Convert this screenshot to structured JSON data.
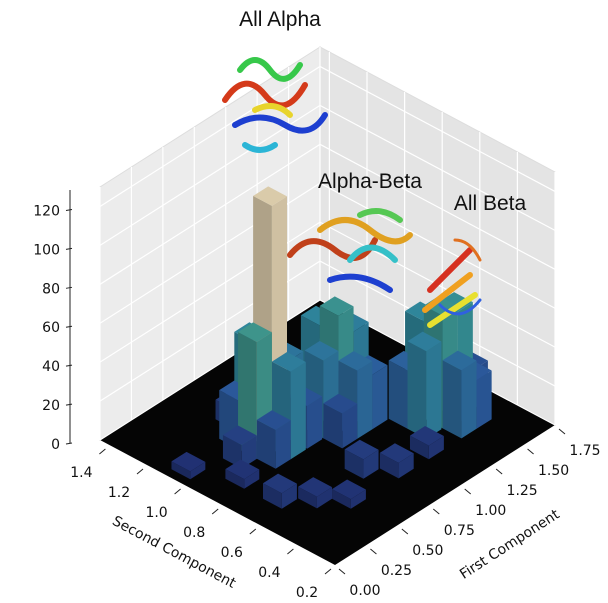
{
  "chart_data": {
    "type": "bar3d",
    "annotations": [
      "All Alpha",
      "Alpha-Beta",
      "All Beta"
    ],
    "xlabel": "First Component",
    "ylabel": "Second Component",
    "xlim": [
      0,
      1.75
    ],
    "ylim": [
      0.2,
      1.45
    ],
    "zlim": [
      0,
      130
    ],
    "xticks": [
      {
        "value": 0,
        "label": "0.00"
      },
      {
        "value": 0.25,
        "label": "0.25"
      },
      {
        "value": 0.5,
        "label": "0.50"
      },
      {
        "value": 0.75,
        "label": "0.75"
      },
      {
        "value": 1,
        "label": "1.00"
      },
      {
        "value": 1.25,
        "label": "1.25"
      },
      {
        "value": 1.5,
        "label": "1.50"
      },
      {
        "value": 1.75,
        "label": "1.75"
      }
    ],
    "yticks": [
      0.2,
      0.4,
      0.6,
      0.8,
      {
        "value": 1,
        "label": "1.0"
      },
      1.2,
      1.4
    ],
    "zticks": [
      0,
      20,
      40,
      60,
      80,
      100,
      120
    ],
    "first": [
      0.62,
      0.5,
      0.75,
      0.62,
      0.62,
      0.5,
      0.75,
      0.5,
      0.75,
      0.38,
      0.62,
      1.0,
      1.12,
      1.0,
      0.88,
      1.0,
      1.12,
      0.88,
      1.12,
      0.88,
      1.38,
      1.5,
      1.38,
      1.25,
      1.5,
      1.38,
      1.25,
      1.5,
      1.62,
      0.25,
      0.38,
      0.5,
      0.75,
      0.88,
      1.12,
      0.25,
      1.62,
      0.12,
      1.25
    ],
    "second": [
      0.96,
      0.96,
      0.96,
      1.06,
      0.86,
      1.06,
      0.86,
      0.86,
      1.06,
      0.96,
      1.16,
      0.86,
      0.86,
      0.96,
      0.86,
      0.76,
      0.96,
      0.96,
      0.76,
      0.76,
      0.56,
      0.56,
      0.66,
      0.56,
      0.66,
      0.46,
      0.66,
      0.46,
      0.56,
      0.66,
      0.56,
      0.46,
      0.56,
      0.46,
      0.46,
      0.86,
      0.76,
      1.06,
      1.06
    ],
    "values": [
      125,
      60,
      40,
      50,
      45,
      25,
      22,
      20,
      15,
      12,
      10,
      58,
      45,
      48,
      40,
      35,
      30,
      25,
      28,
      18,
      58,
      55,
      50,
      45,
      40,
      35,
      30,
      25,
      20,
      8,
      6,
      5,
      10,
      8,
      7,
      5,
      6,
      4,
      6
    ],
    "grid": true
  }
}
